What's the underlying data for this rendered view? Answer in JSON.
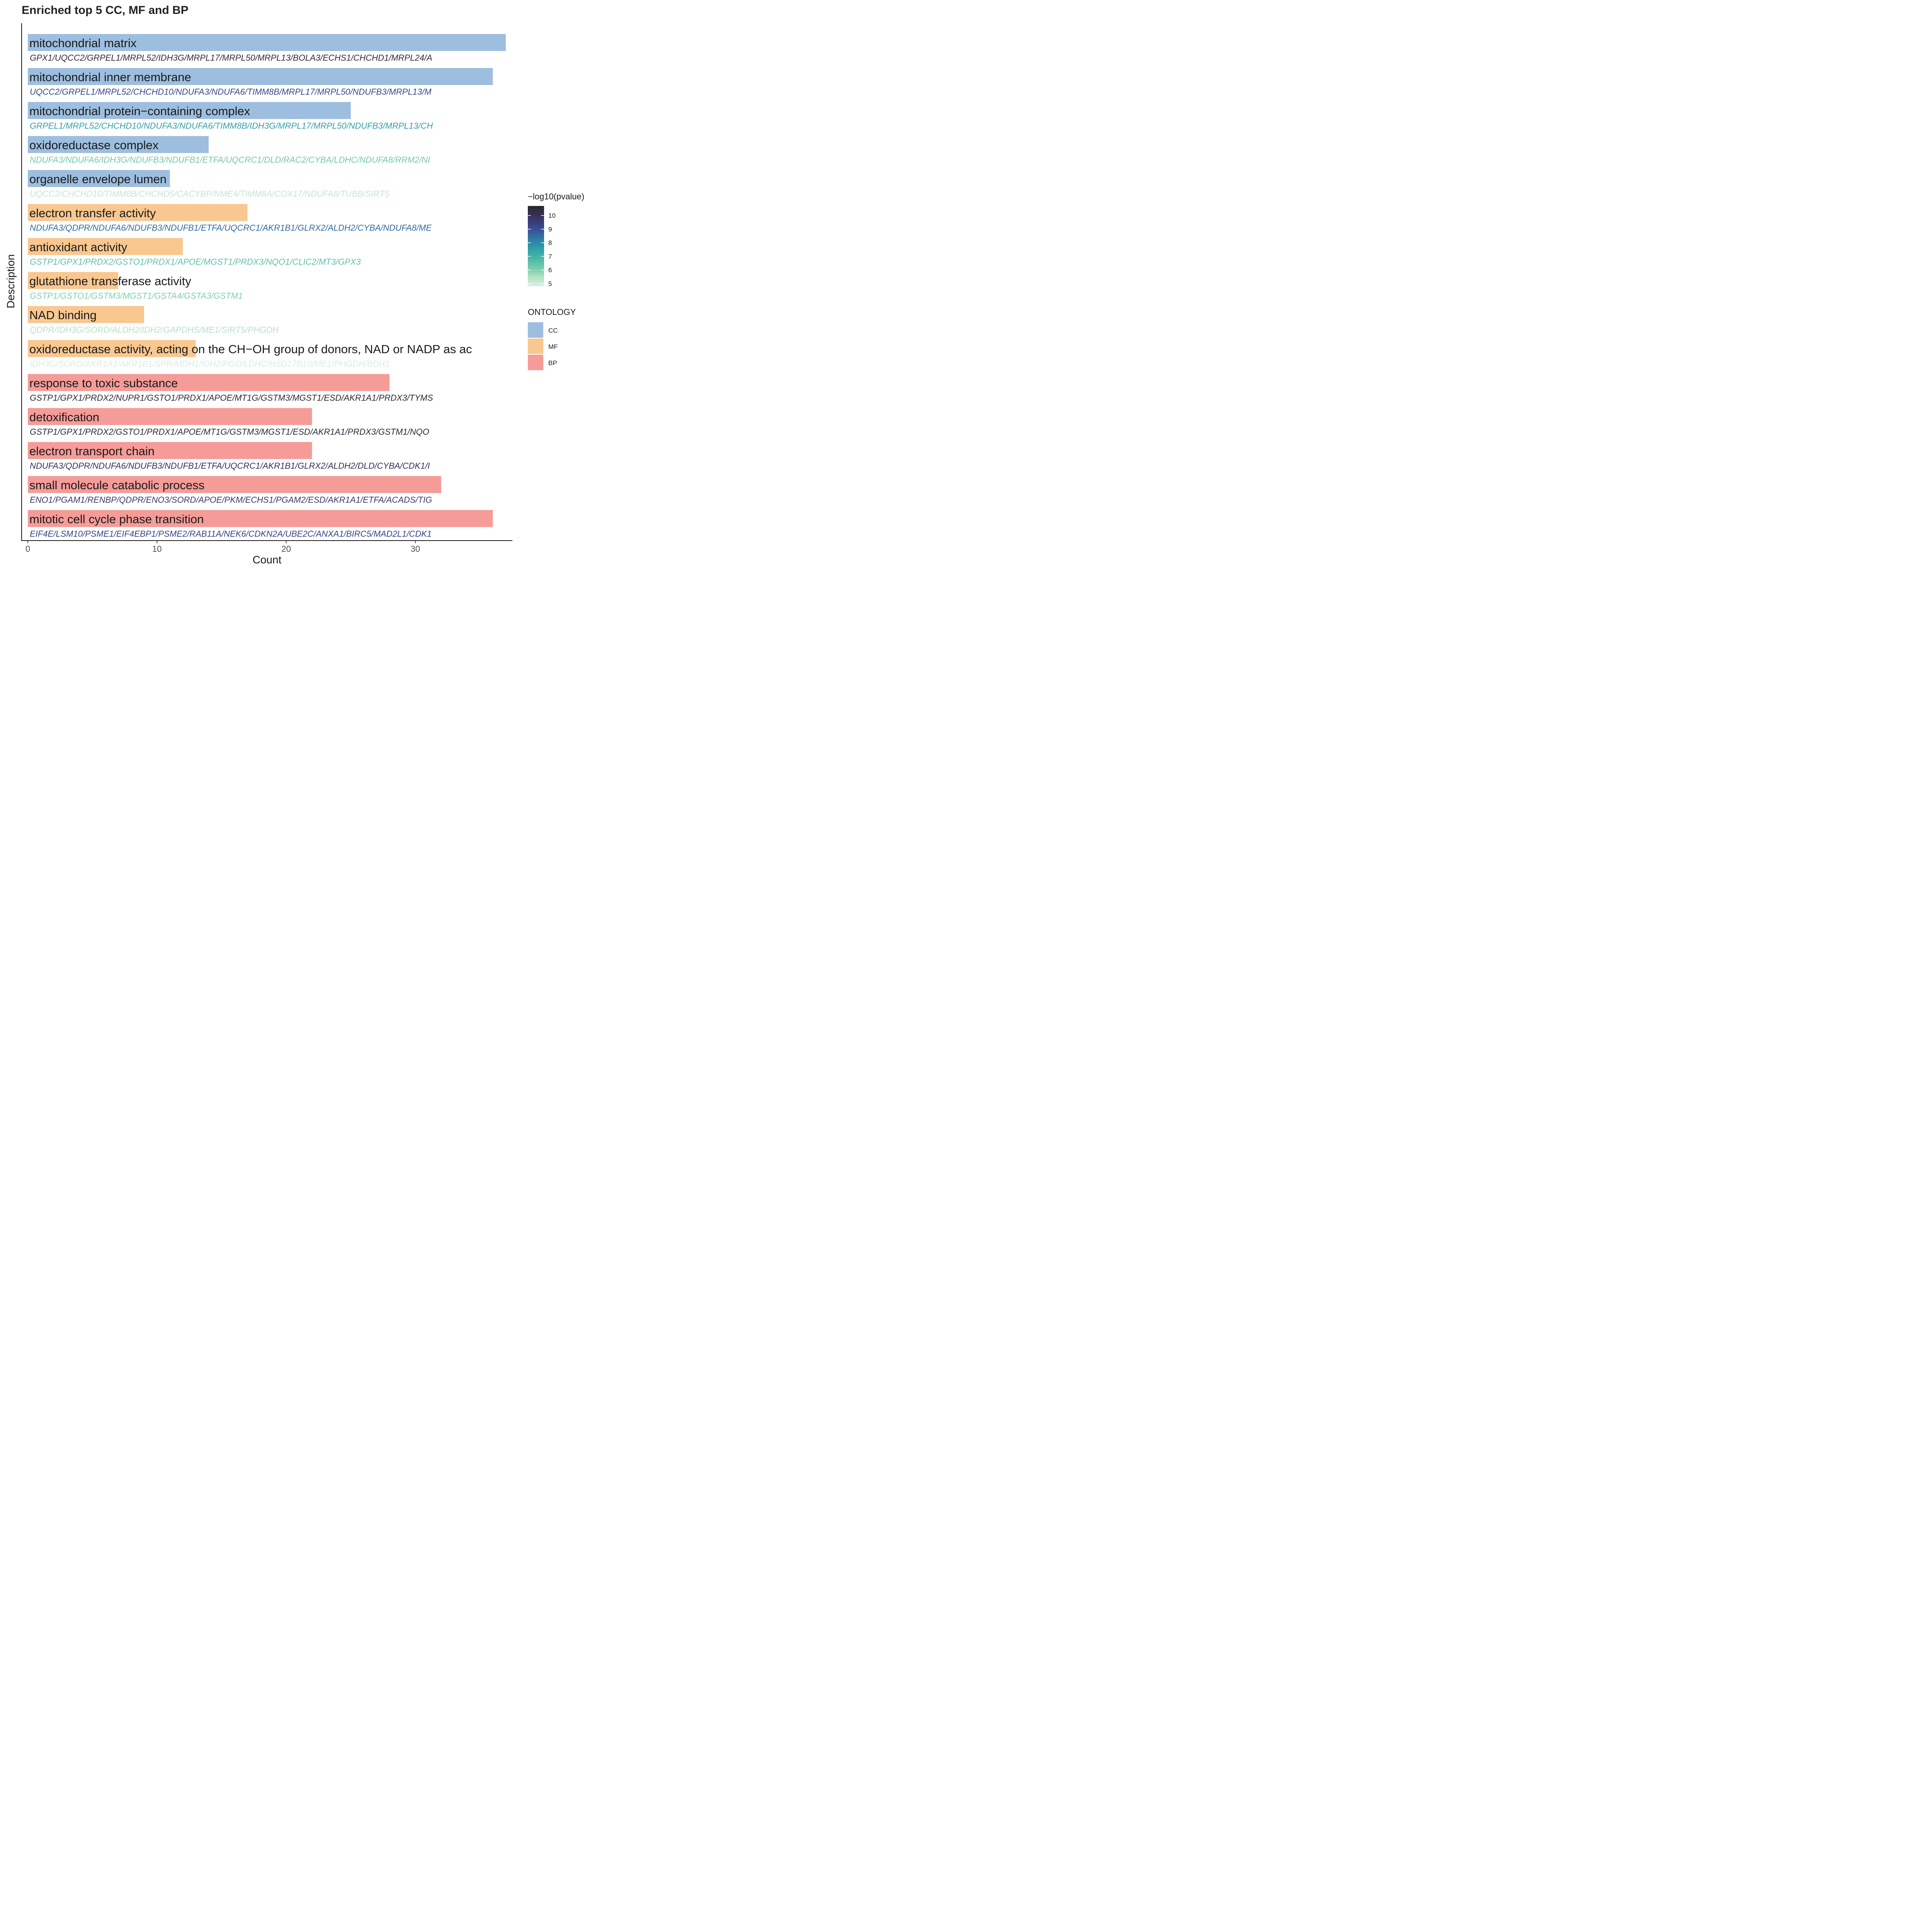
{
  "chart_data": {
    "type": "bar",
    "orientation": "horizontal",
    "title": "Enriched top 5 CC, MF and BP",
    "xlabel": "Count",
    "ylabel": "Description",
    "xlim": [
      0,
      37.5
    ],
    "xticks": [
      0,
      10,
      20,
      30
    ],
    "grid": false,
    "ontology_colors": {
      "CC": "#9dbedf",
      "MF": "#f9c790",
      "BP": "#f59c98"
    },
    "color_scale": {
      "title": "−log10(pvalue)",
      "range": [
        4.8,
        10.7
      ],
      "ticks": [
        5,
        6,
        7,
        8,
        9,
        10
      ],
      "stops": [
        {
          "v": 4.8,
          "color": "#ddf0e4"
        },
        {
          "v": 5.5,
          "color": "#b3dfc5"
        },
        {
          "v": 6,
          "color": "#82cfae"
        },
        {
          "v": 7,
          "color": "#3fb3a5"
        },
        {
          "v": 8,
          "color": "#2a8bab"
        },
        {
          "v": 9,
          "color": "#3a4d95"
        },
        {
          "v": 10,
          "color": "#382e5b"
        },
        {
          "v": 10.7,
          "color": "#2a2a2c"
        }
      ]
    },
    "legend": {
      "placement": "right",
      "title": "ONTOLOGY",
      "entries": [
        "CC",
        "MF",
        "BP"
      ]
    },
    "series": [
      {
        "description": "mitochondrial matrix",
        "ontology": "CC",
        "count": 37,
        "log10p": 10.4,
        "genes": "GPX1/UQCC2/GRPEL1/MRPL52/IDH3G/MRPL17/MRPL50/MRPL13/BOLA3/ECHS1/CHCHD1/MRPL24/A"
      },
      {
        "description": "mitochondrial inner membrane",
        "ontology": "CC",
        "count": 36,
        "log10p": 9.2,
        "genes": "UQCC2/GRPEL1/MRPL52/CHCHD10/NDUFA3/NDUFA6/TIMM8B/MRPL17/MRPL50/NDUFB3/MRPL13/M"
      },
      {
        "description": "mitochondrial protein−containing complex",
        "ontology": "CC",
        "count": 25,
        "log10p": 7.5,
        "genes": "GRPEL1/MRPL52/CHCHD10/NDUFA3/NDUFA6/TIMM8B/IDH3G/MRPL17/MRPL50/NDUFB3/MRPL13/CH"
      },
      {
        "description": "oxidoreductase complex",
        "ontology": "CC",
        "count": 14,
        "log10p": 6.2,
        "genes": "NDUFA3/NDUFA6/IDH3G/NDUFB3/NDUFB1/ETFA/UQCRC1/DLD/RAC2/CYBA/LDHC/NDUFA8/RRM2/NI"
      },
      {
        "description": "organelle envelope lumen",
        "ontology": "CC",
        "count": 11,
        "log10p": 5.2,
        "genes": "UQCC2/CHCHD10/TIMM8B/CHCHD5/CACYBP/NME4/TIMM8A/COX17/NDUFA8/TUBB/SIRT5"
      },
      {
        "description": "electron transfer activity",
        "ontology": "MF",
        "count": 17,
        "log10p": 8.5,
        "genes": "NDUFA3/QDPR/NDUFA6/NDUFB3/NDUFB1/ETFA/UQCRC1/AKR1B1/GLRX2/ALDH2/CYBA/NDUFA8/ME"
      },
      {
        "description": "antioxidant activity",
        "ontology": "MF",
        "count": 12,
        "log10p": 6.5,
        "genes": "GSTP1/GPX1/PRDX2/GSTO1/PRDX1/APOE/MGST1/PRDX3/NQO1/CLIC2/MT3/GPX3"
      },
      {
        "description": "glutathione transferase activity",
        "ontology": "MF",
        "count": 7,
        "log10p": 6.0,
        "genes": "GSTP1/GSTO1/GSTM3/MGST1/GSTA4/GSTA3/GSTM1"
      },
      {
        "description": "NAD binding",
        "ontology": "MF",
        "count": 9,
        "log10p": 5.4,
        "genes": "QDPR/IDH3G/SORD/ALDH2/IDH2/GAPDHS/ME1/SIRT5/PHGDH"
      },
      {
        "description": "oxidoreductase activity, acting on the CH−OH group of donors, NAD or NADP as ac",
        "ontology": "MF",
        "count": 13,
        "log10p": 4.9,
        "genes": "IDH3G/SORD/AKR1A1/AKR1B1/SPR/MDH1/IDH2/PGD/LDHC/HSD17B10/ME1/PHGDH/BDH1"
      },
      {
        "description": "response to toxic substance",
        "ontology": "BP",
        "count": 28,
        "log10p": 10.6,
        "genes": "GSTP1/GPX1/PRDX2/NUPR1/GSTO1/PRDX1/APOE/MT1G/GSTM3/MGST1/ESD/AKR1A1/PRDX3/TYMS"
      },
      {
        "description": "detoxification",
        "ontology": "BP",
        "count": 22,
        "log10p": 10.5,
        "genes": "GSTP1/GPX1/PRDX2/GSTO1/PRDX1/APOE/MT1G/GSTM3/MGST1/ESD/AKR1A1/PRDX3/GSTM1/NQO"
      },
      {
        "description": "electron transport chain",
        "ontology": "BP",
        "count": 22,
        "log10p": 10.0,
        "genes": "NDUFA3/QDPR/NDUFA6/NDUFB3/NDUFB1/ETFA/UQCRC1/AKR1B1/GLRX2/ALDH2/DLD/CYBA/CDK1/I"
      },
      {
        "description": "small molecule catabolic process",
        "ontology": "BP",
        "count": 32,
        "log10p": 9.6,
        "genes": "ENO1/PGAM1/RENBP/QDPR/ENO3/SORD/APOE/PKM/ECHS1/PGAM2/ESD/AKR1A1/ETFA/ACADS/TIG"
      },
      {
        "description": "mitotic cell cycle phase transition",
        "ontology": "BP",
        "count": 36,
        "log10p": 9.3,
        "genes": "EIF4E/LSM10/PSME1/EIF4EBP1/PSME2/RAB11A/NEK6/CDKN2A/UBE2C/ANXA1/BIRC5/MAD2L1/CDK1"
      }
    ]
  }
}
